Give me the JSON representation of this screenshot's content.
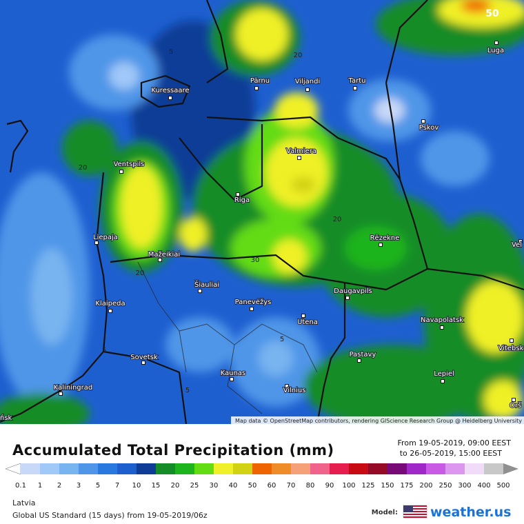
{
  "map": {
    "cities": [
      "Kuressaare",
      "Pärnu",
      "Viljandi",
      "Tartu",
      "Pskov",
      "Luga",
      "Ventspils",
      "Valmiera",
      "Riga",
      "Liepaja",
      "Rēzekne",
      "Mažeikiai",
      "Šiauliai",
      "Panevėžys",
      "Daugavpils",
      "Klaipeda",
      "Navapolatsk",
      "Utena",
      "Vitebsk",
      "Sovetsk",
      "Pastavy",
      "Kaunas",
      "Lepiel",
      "Kaliningrad",
      "Vilnius",
      "Orš",
      "Vel",
      "ńsk"
    ],
    "contour_labels": [
      "50",
      "20",
      "20",
      "20",
      "30",
      "20",
      "5",
      "5",
      "5",
      "5"
    ],
    "attribution": "Map data © OpenStreetMap contributors, rendering GIScience Research Group @ Heidelberg University"
  },
  "legend": {
    "title": "Accumulated Total Precipitation (mm)",
    "period_from": "From 19-05-2019, 09:00 EEST",
    "period_to": "to 26-05-2019, 15:00 EEST",
    "scale_labels": [
      "0.1",
      "1",
      "2",
      "3",
      "5",
      "7",
      "10",
      "15",
      "20",
      "25",
      "30",
      "40",
      "50",
      "60",
      "70",
      "80",
      "90",
      "100",
      "125",
      "150",
      "175",
      "200",
      "250",
      "300",
      "400",
      "500"
    ],
    "scale_colors": [
      "#c8d8f8",
      "#a0c8f8",
      "#78b4f0",
      "#4f96e8",
      "#2878e0",
      "#1e5fd0",
      "#0f3c96",
      "#148c28",
      "#1eb41e",
      "#64dc14",
      "#f0f028",
      "#d2d214",
      "#f06400",
      "#f08c28",
      "#f5a078",
      "#f0648c",
      "#e61e50",
      "#c80a14",
      "#960a28",
      "#780a78",
      "#a028c8",
      "#c85ae6",
      "#dc96f0",
      "#f0dcf8",
      "#c8c8c8"
    ],
    "below_color": "#ffffff",
    "above_color": "#909090"
  },
  "footer": {
    "region": "Latvia",
    "model_run": "Global US Standard (15 days) from 19-05-2019/06z",
    "model_label": "Model:",
    "brand": "weather.us"
  }
}
